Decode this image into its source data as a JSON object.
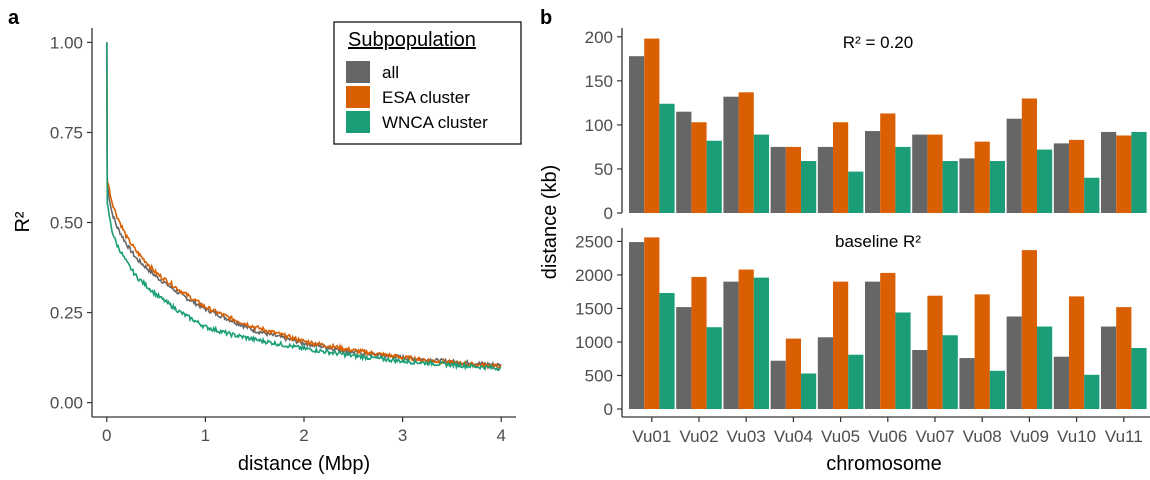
{
  "panels": {
    "a": "a",
    "b": "b"
  },
  "colors": {
    "all": "#666666",
    "esa": "#d95f02",
    "wnca": "#1b9e77"
  },
  "chart_data": [
    {
      "type": "line",
      "xlabel": "distance (Mbp)",
      "ylabel": "R²",
      "xlim": [
        -0.15,
        4.15
      ],
      "ylim": [
        -0.04,
        1.04
      ],
      "xticks": [
        0,
        1,
        2,
        3,
        4
      ],
      "yticks": [
        "0.00",
        "0.25",
        "0.50",
        "0.75",
        "1.00"
      ],
      "legend": {
        "title": "Subpopulation",
        "placement": "top-right"
      },
      "series": [
        {
          "name": "all",
          "key": "all",
          "x": [
            0,
            0.005,
            0.05,
            0.1,
            0.2,
            0.3,
            0.5,
            0.75,
            1,
            1.25,
            1.5,
            2,
            2.5,
            3,
            3.5,
            4
          ],
          "y": [
            1.0,
            0.6,
            0.53,
            0.49,
            0.44,
            0.4,
            0.35,
            0.3,
            0.26,
            0.23,
            0.2,
            0.165,
            0.14,
            0.125,
            0.113,
            0.104
          ]
        },
        {
          "name": "ESA cluster",
          "key": "esa",
          "x": [
            0,
            0.005,
            0.05,
            0.1,
            0.2,
            0.3,
            0.5,
            0.75,
            1,
            1.25,
            1.5,
            2,
            2.5,
            3,
            3.5,
            4
          ],
          "y": [
            1.0,
            0.62,
            0.56,
            0.52,
            0.46,
            0.42,
            0.36,
            0.31,
            0.265,
            0.235,
            0.21,
            0.17,
            0.145,
            0.125,
            0.11,
            0.1
          ]
        },
        {
          "name": "WNCA cluster",
          "key": "wnca",
          "x": [
            0,
            0.005,
            0.05,
            0.1,
            0.2,
            0.3,
            0.5,
            0.75,
            1,
            1.25,
            1.5,
            2,
            2.5,
            3,
            3.5,
            4
          ],
          "y": [
            1.0,
            0.55,
            0.48,
            0.44,
            0.39,
            0.35,
            0.3,
            0.25,
            0.21,
            0.19,
            0.175,
            0.15,
            0.13,
            0.115,
            0.105,
            0.095
          ]
        }
      ]
    },
    {
      "type": "bar",
      "title": "R² = 0.20",
      "xlabel": "chromosome",
      "ylabel": "distance (kb)",
      "ylim": [
        0,
        210
      ],
      "yticks": [
        0,
        50,
        100,
        150,
        200
      ],
      "categories": [
        "Vu01",
        "Vu02",
        "Vu03",
        "Vu04",
        "Vu05",
        "Vu06",
        "Vu07",
        "Vu08",
        "Vu09",
        "Vu10",
        "Vu11"
      ],
      "series": [
        {
          "name": "all",
          "key": "all",
          "values": [
            178,
            115,
            132,
            75,
            75,
            93,
            89,
            62,
            107,
            79,
            92
          ]
        },
        {
          "name": "ESA cluster",
          "key": "esa",
          "values": [
            198,
            103,
            137,
            75,
            103,
            113,
            89,
            81,
            130,
            83,
            88
          ]
        },
        {
          "name": "WNCA cluster",
          "key": "wnca",
          "values": [
            124,
            82,
            89,
            59,
            47,
            75,
            59,
            59,
            72,
            40,
            92
          ]
        }
      ]
    },
    {
      "type": "bar",
      "title": "baseline R²",
      "xlabel": "chromosome",
      "ylabel": "distance (kb)",
      "ylim": [
        0,
        2700
      ],
      "yticks": [
        0,
        500,
        1000,
        1500,
        2000,
        2500
      ],
      "categories": [
        "Vu01",
        "Vu02",
        "Vu03",
        "Vu04",
        "Vu05",
        "Vu06",
        "Vu07",
        "Vu08",
        "Vu09",
        "Vu10",
        "Vu11"
      ],
      "series": [
        {
          "name": "all",
          "key": "all",
          "values": [
            2490,
            1520,
            1900,
            720,
            1070,
            1900,
            880,
            760,
            1380,
            780,
            1230
          ]
        },
        {
          "name": "ESA cluster",
          "key": "esa",
          "values": [
            2560,
            1970,
            2080,
            1050,
            1900,
            2030,
            1690,
            1710,
            2370,
            1680,
            1520
          ]
        },
        {
          "name": "WNCA cluster",
          "key": "wnca",
          "values": [
            1730,
            1220,
            1960,
            530,
            810,
            1440,
            1100,
            570,
            1230,
            510,
            910
          ]
        }
      ]
    }
  ]
}
